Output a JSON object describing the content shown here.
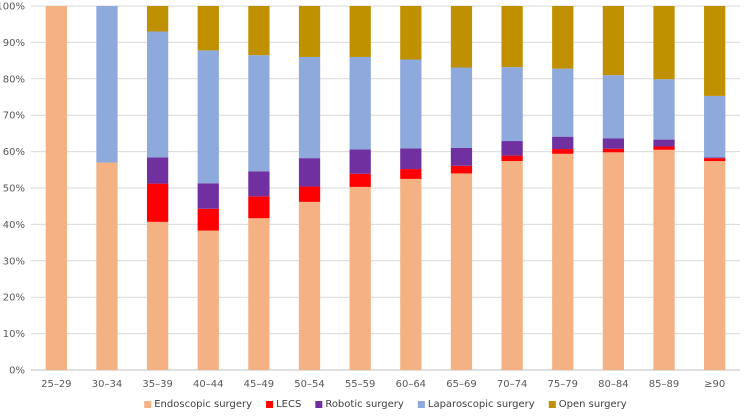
{
  "chart_data": {
    "type": "bar",
    "stacked": true,
    "title": "",
    "xlabel": "",
    "ylabel": "",
    "ylim": [
      0,
      100
    ],
    "yticks": [
      "0%",
      "10%",
      "20%",
      "30%",
      "40%",
      "50%",
      "60%",
      "70%",
      "80%",
      "90%",
      "100%"
    ],
    "grid": true,
    "legend_position": "bottom",
    "categories": [
      "25–29",
      "30–34",
      "35–39",
      "40–44",
      "45–49",
      "50–54",
      "55–59",
      "60–64",
      "65–69",
      "70–74",
      "75–79",
      "80–84",
      "85–89",
      "≥90"
    ],
    "series": [
      {
        "name": "Endoscopic surgery",
        "color": "#F4B183",
        "values": [
          100,
          57,
          40.7,
          38.3,
          41.7,
          46.2,
          50.3,
          52.5,
          54,
          57.4,
          59.4,
          59.8,
          60.5,
          57.4
        ]
      },
      {
        "name": "LECS",
        "color": "#FF0000",
        "values": [
          0,
          0,
          10.5,
          6,
          6,
          4.2,
          3.6,
          2.7,
          2.1,
          1.5,
          1.3,
          1,
          0.9,
          0.8
        ]
      },
      {
        "name": "Robotic surgery",
        "color": "#7030A0",
        "values": [
          0,
          0,
          7.2,
          7,
          6.9,
          7.8,
          6.7,
          5.7,
          4.9,
          4,
          3.4,
          2.8,
          1.9,
          0.2
        ]
      },
      {
        "name": "Laparoscopic surgery",
        "color": "#8EA9DB",
        "values": [
          0,
          43,
          34.6,
          36.5,
          31.9,
          27.8,
          25.4,
          24.4,
          22.1,
          20.3,
          18.7,
          17.4,
          16.6,
          16.9
        ]
      },
      {
        "name": "Open surgery",
        "color": "#BF9000",
        "values": [
          0,
          0,
          7,
          12.2,
          13.5,
          14,
          14,
          14.7,
          16.9,
          16.8,
          17.2,
          19,
          20.1,
          24.7
        ]
      }
    ]
  }
}
